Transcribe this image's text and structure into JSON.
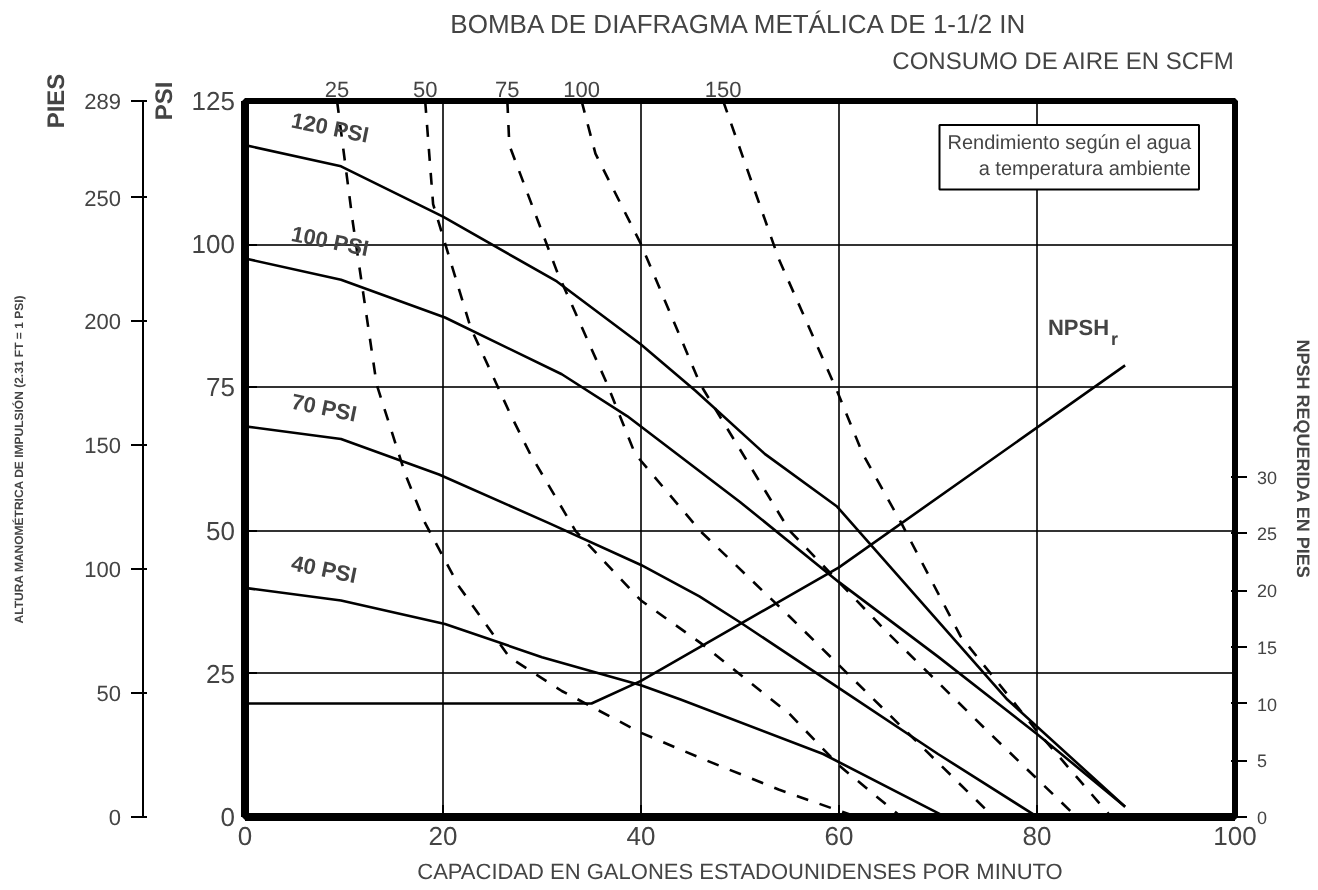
{
  "chart_data": {
    "type": "line",
    "title": "BOMBA DE DIAFRAGMA METÁLICA DE 1-1/2 IN",
    "xlabel": "CAPACIDAD EN GALONES ESTADOUNIDENSES POR MINUTO",
    "ylabel": "PSI",
    "y2label": "NPSH REQUERIDA EN PIES",
    "y3label": "PIES",
    "annotations": [
      "ALTURA MANOMÉTRICA DE IMPULSIÓN (2.31 FT = 1 PSI)",
      "CONSUMO DE AIRE EN SCFM",
      "Rendimiento según el agua\na temperatura ambiente"
    ],
    "xlim": [
      0,
      100
    ],
    "xticks": [
      0,
      20,
      40,
      60,
      80,
      100
    ],
    "ylim": [
      0,
      125
    ],
    "yticks": [
      0,
      25,
      50,
      75,
      100,
      125
    ],
    "y2lim": [
      0,
      63.1
    ],
    "y2ticks": [
      0,
      5,
      10,
      15,
      20,
      25,
      30
    ],
    "y3lim": [
      0,
      289
    ],
    "y3ticks": [
      0,
      50,
      100,
      150,
      200,
      250,
      289
    ],
    "grid": true,
    "legend": false,
    "series": [
      {
        "name": "120 PSI",
        "color": "#000000",
        "line_style": "solid",
        "x": [
          0,
          9.7,
          20,
          31.5,
          40,
          45.5,
          52.5,
          59.8,
          77,
          88.9
        ],
        "values": [
          117.3,
          113.6,
          104.8,
          93.5,
          82.5,
          74.4,
          63.4,
          54.2,
          20.5,
          1.8
        ]
      },
      {
        "name": "100 PSI",
        "color": "#000000",
        "line_style": "solid",
        "x": [
          0,
          9.7,
          20.2,
          32,
          38.6,
          50,
          60,
          70,
          80,
          88.9
        ],
        "values": [
          97.5,
          93.8,
          87.2,
          77.3,
          70,
          55,
          41,
          28,
          14.5,
          1.8
        ]
      },
      {
        "name": "70 PSI",
        "color": "#000000",
        "line_style": "solid",
        "x": [
          0,
          9.7,
          19.6,
          30.7,
          40,
          45.9,
          50,
          60,
          70,
          79.6
        ],
        "values": [
          68.2,
          66,
          59.8,
          51.3,
          44,
          38.5,
          34,
          22.5,
          11,
          0.5
        ]
      },
      {
        "name": "40 PSI",
        "color": "#000000",
        "line_style": "solid",
        "x": [
          0,
          9.7,
          20.2,
          30,
          40,
          44,
          58.4,
          70.3
        ],
        "values": [
          40,
          37.8,
          33.7,
          27.9,
          23,
          20.5,
          11,
          0.4
        ]
      },
      {
        "name": "25",
        "color": "#000000",
        "line_style": "dashed",
        "x": [
          9.3,
          10.9,
          13.3,
          16.2,
          18.2,
          21.6,
          26.7,
          32,
          40,
          46,
          53.9,
          61.8
        ],
        "values": [
          125,
          103.7,
          75.5,
          59.8,
          51.3,
          40.3,
          27.9,
          22,
          14.7,
          10.3,
          4.8,
          0
        ]
      },
      {
        "name": "50",
        "color": "#000000",
        "line_style": "dashed",
        "x": [
          18.2,
          19,
          22.8,
          26.7,
          28.8,
          33.4,
          40,
          46,
          55,
          60,
          66.3
        ],
        "values": [
          125,
          107,
          85.4,
          70.7,
          63.4,
          49.9,
          37.8,
          30.4,
          18,
          9,
          0
        ]
      },
      {
        "name": "75",
        "color": "#000000",
        "line_style": "dashed",
        "x": [
          26.5,
          26.7,
          31.5,
          36.6,
          39.4,
          46,
          55,
          65,
          75.6
        ],
        "values": [
          125,
          117.3,
          95.3,
          75.5,
          63.4,
          49.9,
          35,
          18,
          0
        ]
      },
      {
        "name": "100",
        "color": "#000000",
        "line_style": "dashed",
        "x": [
          34,
          35.4,
          40,
          46,
          55,
          65,
          75,
          84
        ],
        "values": [
          125,
          115.8,
          100,
          75.5,
          50,
          32,
          15,
          0
        ]
      },
      {
        "name": "150",
        "color": "#000000",
        "line_style": "dashed",
        "x": [
          48.3,
          53.9,
          59.8,
          62.4,
          66.3,
          72.3,
          80,
          87.5
        ],
        "values": [
          125,
          97.5,
          74.4,
          63.4,
          51.3,
          31.5,
          15,
          0
        ]
      },
      {
        "name": "NPSH$_{r}$",
        "color": "#000000",
        "line_style": "solid",
        "axis": "y2",
        "x": [
          0,
          35,
          40,
          60,
          88.9
        ],
        "values": [
          10,
          10,
          12,
          22,
          39.8
        ]
      }
    ]
  }
}
